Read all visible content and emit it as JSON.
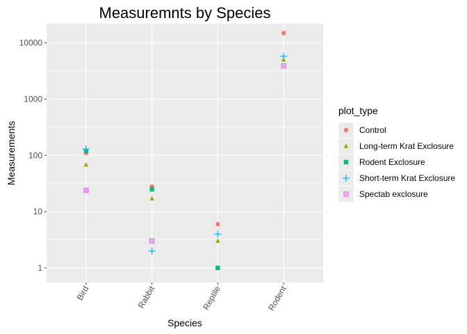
{
  "chart_data": {
    "type": "scatter",
    "title": "Measuremnts by Species",
    "xlabel": "Species",
    "ylabel": "Measurements",
    "categories": [
      "Bird",
      "Rabbit",
      "Reptile",
      "Rodent"
    ],
    "y_scale": "log10",
    "ylim": [
      0.55,
      22000
    ],
    "y_ticks": [
      1,
      10,
      100,
      1000,
      10000
    ],
    "y_tick_labels": [
      "1",
      "10",
      "100",
      "1000",
      "10000"
    ],
    "x_tick_label_rotation": "60 degrees",
    "grid": true,
    "legend": {
      "title": "plot_type",
      "placement": "right"
    },
    "series": [
      {
        "name": "Control",
        "color": "#F8766D",
        "shape": "circle",
        "values": [
          110,
          28,
          6,
          15000
        ]
      },
      {
        "name": "Long-term Krat Exclosure",
        "color": "#A3A500",
        "shape": "triangle",
        "values": [
          68,
          17,
          3,
          5000
        ]
      },
      {
        "name": "Rodent Exclosure",
        "color": "#00BF7D",
        "shape": "square",
        "values": [
          120,
          25,
          1,
          null
        ]
      },
      {
        "name": "Short-term Krat Exclosure",
        "color": "#00B0F6",
        "shape": "plus",
        "values": [
          130,
          2,
          4,
          5800
        ]
      },
      {
        "name": "Spectab exclosure",
        "color": "#E76BF3",
        "shape": "square-cross",
        "values": [
          24,
          3,
          null,
          3900
        ]
      }
    ]
  }
}
